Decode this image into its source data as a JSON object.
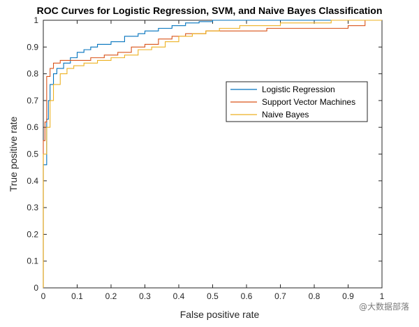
{
  "chart_data": {
    "type": "line",
    "title": "ROC Curves for Logistic Regression, SVM, and Naive Bayes Classification",
    "xlabel": "False positive rate",
    "ylabel": "True positive rate",
    "xlim": [
      0,
      1
    ],
    "ylim": [
      0,
      1
    ],
    "xticks": [
      "0",
      "0.1",
      "0.2",
      "0.3",
      "0.4",
      "0.5",
      "0.6",
      "0.7",
      "0.8",
      "0.9",
      "1"
    ],
    "yticks": [
      "0",
      "0.1",
      "0.2",
      "0.3",
      "0.4",
      "0.5",
      "0.6",
      "0.7",
      "0.8",
      "0.9",
      "1"
    ],
    "grid": false,
    "legend_position": "right",
    "series": [
      {
        "name": "Logistic Regression",
        "color": "#0072BD",
        "points": [
          [
            0,
            0
          ],
          [
            0,
            0.46
          ],
          [
            0.01,
            0.63
          ],
          [
            0.015,
            0.7
          ],
          [
            0.02,
            0.76
          ],
          [
            0.03,
            0.8
          ],
          [
            0.04,
            0.82
          ],
          [
            0.06,
            0.84
          ],
          [
            0.08,
            0.86
          ],
          [
            0.1,
            0.88
          ],
          [
            0.12,
            0.89
          ],
          [
            0.14,
            0.9
          ],
          [
            0.16,
            0.91
          ],
          [
            0.2,
            0.92
          ],
          [
            0.24,
            0.94
          ],
          [
            0.28,
            0.95
          ],
          [
            0.3,
            0.96
          ],
          [
            0.34,
            0.97
          ],
          [
            0.38,
            0.98
          ],
          [
            0.42,
            0.99
          ],
          [
            0.46,
            0.995
          ],
          [
            0.5,
            1
          ],
          [
            1,
            1
          ]
        ]
      },
      {
        "name": "Support Vector Machines",
        "color": "#D95319",
        "points": [
          [
            0,
            0
          ],
          [
            0,
            0.55
          ],
          [
            0.005,
            0.62
          ],
          [
            0.01,
            0.79
          ],
          [
            0.02,
            0.82
          ],
          [
            0.03,
            0.84
          ],
          [
            0.05,
            0.85
          ],
          [
            0.1,
            0.85
          ],
          [
            0.14,
            0.86
          ],
          [
            0.18,
            0.87
          ],
          [
            0.22,
            0.88
          ],
          [
            0.26,
            0.9
          ],
          [
            0.3,
            0.91
          ],
          [
            0.34,
            0.93
          ],
          [
            0.38,
            0.94
          ],
          [
            0.42,
            0.95
          ],
          [
            0.48,
            0.96
          ],
          [
            0.56,
            0.96
          ],
          [
            0.66,
            0.97
          ],
          [
            0.8,
            0.97
          ],
          [
            0.9,
            0.98
          ],
          [
            0.95,
            1
          ],
          [
            1,
            1
          ]
        ]
      },
      {
        "name": "Naive Bayes",
        "color": "#EDB120",
        "points": [
          [
            0,
            0
          ],
          [
            0,
            0.5
          ],
          [
            0.01,
            0.6
          ],
          [
            0.02,
            0.7
          ],
          [
            0.03,
            0.76
          ],
          [
            0.05,
            0.8
          ],
          [
            0.07,
            0.82
          ],
          [
            0.09,
            0.83
          ],
          [
            0.12,
            0.84
          ],
          [
            0.16,
            0.85
          ],
          [
            0.2,
            0.86
          ],
          [
            0.24,
            0.87
          ],
          [
            0.28,
            0.89
          ],
          [
            0.32,
            0.9
          ],
          [
            0.36,
            0.92
          ],
          [
            0.4,
            0.94
          ],
          [
            0.44,
            0.95
          ],
          [
            0.48,
            0.96
          ],
          [
            0.52,
            0.97
          ],
          [
            0.58,
            0.98
          ],
          [
            0.7,
            0.99
          ],
          [
            0.85,
            1
          ],
          [
            1,
            1
          ]
        ]
      }
    ]
  },
  "watermark": "@大数据部落"
}
